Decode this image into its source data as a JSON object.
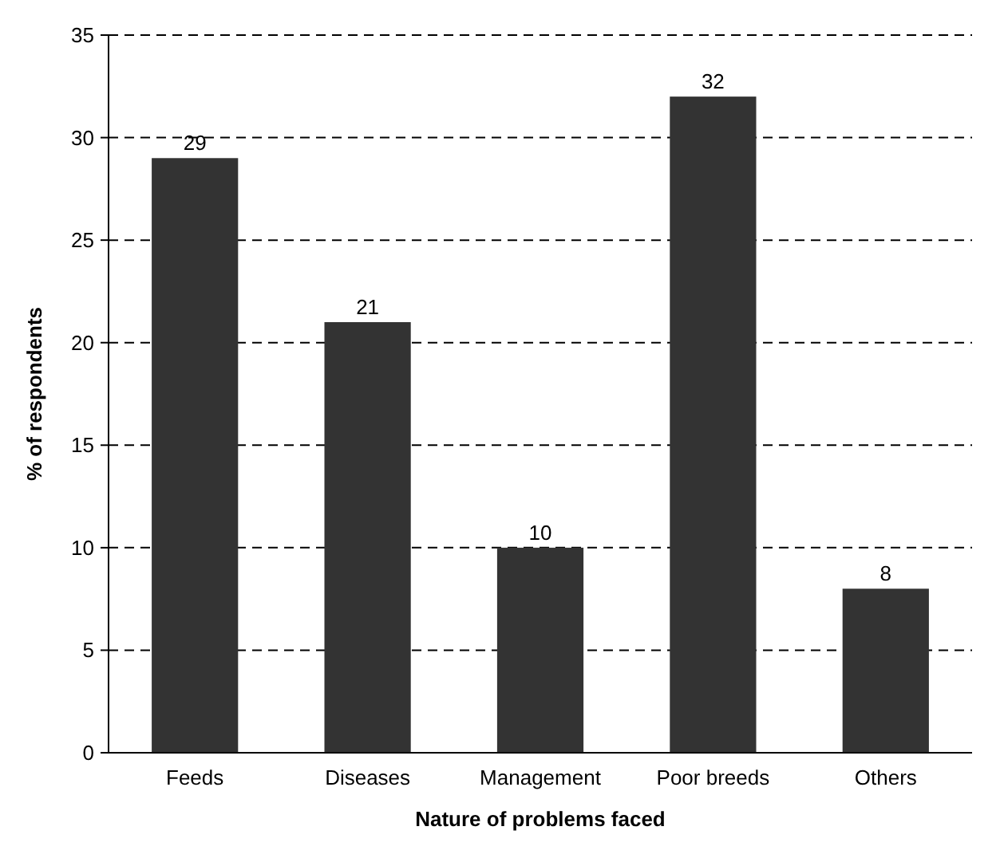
{
  "chart_data": {
    "type": "bar",
    "xlabel": "Nature of problems faced",
    "ylabel": "% of respondents",
    "categories": [
      "Feeds",
      "Diseases",
      "Management",
      "Poor breeds",
      "Others"
    ],
    "values": [
      29,
      21,
      10,
      32,
      8
    ],
    "color": "#333333",
    "ylim": [
      0,
      35
    ],
    "yticks": [
      0,
      5,
      10,
      15,
      20,
      25,
      30,
      35
    ],
    "grid": "y",
    "data_labels": true
  }
}
